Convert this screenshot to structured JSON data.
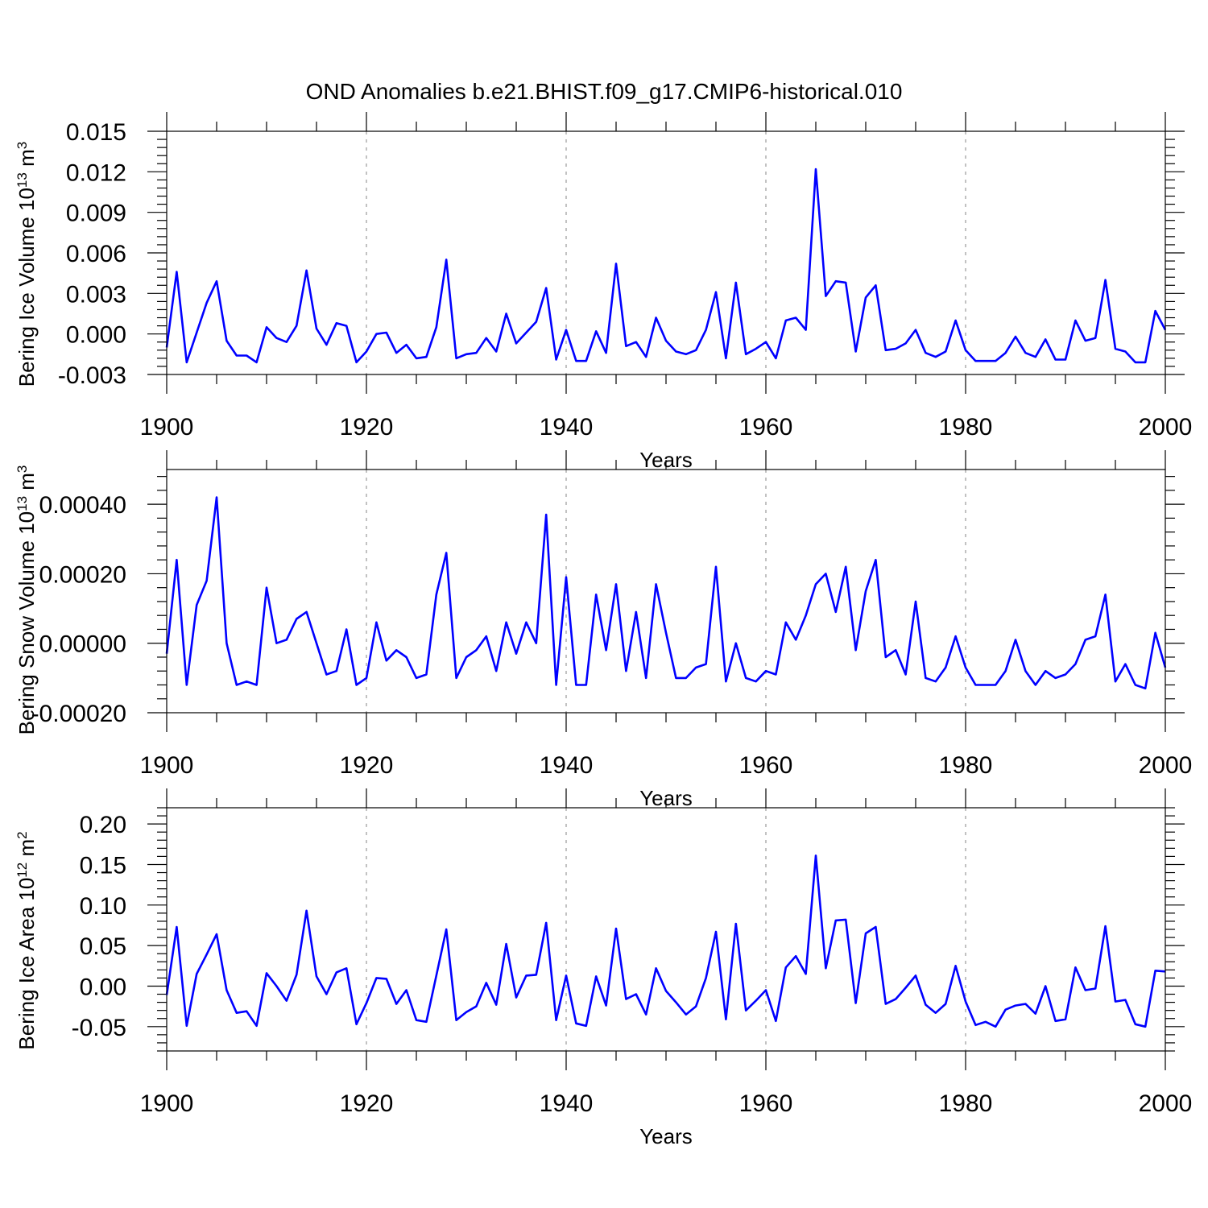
{
  "title": "OND Anomalies b.e21.BHIST.f09_g17.CMIP6-historical.010",
  "colors": {
    "series": "#0000ff",
    "grid": "#999999",
    "frame": "#000000"
  },
  "chart_data": [
    {
      "type": "line",
      "name": "ice-volume",
      "ylabel": "Bering Ice Volume 10",
      "ylabel_exp": "13",
      "ylabel_unit": " m",
      "ylabel_unit_exp": "3",
      "xlabel": "Years",
      "xlim": [
        1900,
        2000
      ],
      "ylim": [
        -0.003,
        0.015
      ],
      "xticks": [
        1900,
        1920,
        1940,
        1960,
        1980,
        2000
      ],
      "xtick_labels": [
        "1900",
        "1920",
        "1940",
        "1960",
        "1980",
        "2000"
      ],
      "yticks": [
        -0.003,
        0.0,
        0.003,
        0.006,
        0.009,
        0.012,
        0.015
      ],
      "ytick_labels": [
        "-0.003",
        "0.000",
        "0.003",
        "0.006",
        "0.009",
        "0.012",
        "0.015"
      ],
      "grid_x": [
        1920,
        1940,
        1960,
        1980
      ],
      "start_year": 1900,
      "values": [
        -0.001,
        0.0046,
        -0.0021,
        0.0001,
        0.0023,
        0.0039,
        -0.0005,
        -0.0016,
        -0.0016,
        -0.0021,
        0.0005,
        -0.0003,
        -0.0006,
        0.0006,
        0.0047,
        0.0004,
        -0.0008,
        0.0008,
        0.0006,
        -0.0021,
        -0.0013,
        0.0,
        0.0001,
        -0.0014,
        -0.0008,
        -0.0018,
        -0.0017,
        0.0005,
        0.0055,
        -0.0018,
        -0.0015,
        -0.0014,
        -0.0003,
        -0.0013,
        0.0015,
        -0.0007,
        0.0001,
        0.0009,
        0.0034,
        -0.0019,
        0.0003,
        -0.002,
        -0.002,
        0.0002,
        -0.0014,
        0.0052,
        -0.0009,
        -0.0006,
        -0.0017,
        0.0012,
        -0.0005,
        -0.0013,
        -0.0015,
        -0.0012,
        0.0003,
        0.0031,
        -0.0018,
        0.0038,
        -0.0015,
        -0.0011,
        -0.0006,
        -0.0018,
        0.001,
        0.0012,
        0.0003,
        0.0122,
        0.0028,
        0.0039,
        0.0038,
        -0.0013,
        0.0027,
        0.0036,
        -0.0012,
        -0.0011,
        -0.0007,
        0.0003,
        -0.0014,
        -0.0017,
        -0.0013,
        0.001,
        -0.0012,
        -0.002,
        -0.002,
        -0.002,
        -0.0014,
        -0.0002,
        -0.0014,
        -0.0017,
        -0.0004,
        -0.0019,
        -0.0019,
        0.001,
        -0.0005,
        -0.0003,
        0.004,
        -0.0011,
        -0.0013,
        -0.0021,
        -0.0021,
        0.0017,
        0.0003
      ]
    },
    {
      "type": "line",
      "name": "snow-volume",
      "ylabel": "Bering Snow Volume 10",
      "ylabel_exp": "13",
      "ylabel_unit": " m",
      "ylabel_unit_exp": "3",
      "xlabel": "Years",
      "xlim": [
        1900,
        2000
      ],
      "ylim": [
        -0.0002,
        0.0005
      ],
      "xticks": [
        1900,
        1920,
        1940,
        1960,
        1980,
        2000
      ],
      "xtick_labels": [
        "1900",
        "1920",
        "1940",
        "1960",
        "1980",
        "2000"
      ],
      "yticks": [
        -0.0002,
        0.0,
        0.0002,
        0.0004
      ],
      "ytick_labels": [
        "-0.00020",
        "0.00000",
        "0.00020",
        "0.00040"
      ],
      "grid_x": [
        1920,
        1940,
        1960,
        1980
      ],
      "start_year": 1900,
      "values": [
        -3e-05,
        0.00024,
        -0.00012,
        0.00011,
        0.00018,
        0.00042,
        0.0,
        -0.00012,
        -0.00011,
        -0.00012,
        0.00016,
        0.0,
        1e-05,
        7e-05,
        9e-05,
        0.0,
        -9e-05,
        -8e-05,
        4e-05,
        -0.00012,
        -0.0001,
        6e-05,
        -5e-05,
        -2e-05,
        -4e-05,
        -0.0001,
        -9e-05,
        0.00014,
        0.00026,
        -0.0001,
        -4e-05,
        -2e-05,
        2e-05,
        -8e-05,
        6e-05,
        -3e-05,
        6e-05,
        0.0,
        0.00037,
        -0.00012,
        0.00019,
        -0.00012,
        -0.00012,
        0.00014,
        -2e-05,
        0.00017,
        -8e-05,
        9e-05,
        -0.0001,
        0.00017,
        3e-05,
        -0.0001,
        -0.0001,
        -7e-05,
        -6e-05,
        0.00022,
        -0.00011,
        0.0,
        -0.0001,
        -0.00011,
        -8e-05,
        -9e-05,
        6e-05,
        1e-05,
        8e-05,
        0.00017,
        0.0002,
        9e-05,
        0.00022,
        -2e-05,
        0.00015,
        0.00024,
        -4e-05,
        -2e-05,
        -9e-05,
        0.00012,
        -0.0001,
        -0.00011,
        -7e-05,
        2e-05,
        -7e-05,
        -0.00012,
        -0.00012,
        -0.00012,
        -8e-05,
        1e-05,
        -8e-05,
        -0.00012,
        -8e-05,
        -0.0001,
        -9e-05,
        -6e-05,
        1e-05,
        2e-05,
        0.00014,
        -0.00011,
        -6e-05,
        -0.00012,
        -0.00013,
        3e-05,
        -7e-05
      ]
    },
    {
      "type": "line",
      "name": "ice-area",
      "ylabel": "Bering Ice Area 10",
      "ylabel_exp": "12",
      "ylabel_unit": " m",
      "ylabel_unit_exp": "2",
      "xlabel": "Years",
      "xlim": [
        1900,
        2000
      ],
      "ylim": [
        -0.08,
        0.22
      ],
      "xticks": [
        1900,
        1920,
        1940,
        1960,
        1980,
        2000
      ],
      "xtick_labels": [
        "1900",
        "1920",
        "1940",
        "1960",
        "1980",
        "2000"
      ],
      "yticks": [
        -0.05,
        0.0,
        0.05,
        0.1,
        0.15,
        0.2
      ],
      "ytick_labels": [
        "-0.05",
        "0.00",
        "0.05",
        "0.10",
        "0.15",
        "0.20"
      ],
      "grid_x": [
        1920,
        1940,
        1960,
        1980
      ],
      "start_year": 1900,
      "values": [
        -0.011,
        0.073,
        -0.049,
        0.015,
        0.039,
        0.064,
        -0.005,
        -0.033,
        -0.031,
        -0.049,
        0.016,
        0.0,
        -0.018,
        0.014,
        0.093,
        0.012,
        -0.01,
        0.017,
        0.022,
        -0.047,
        -0.021,
        0.01,
        0.009,
        -0.022,
        -0.005,
        -0.042,
        -0.044,
        0.013,
        0.07,
        -0.042,
        -0.032,
        -0.025,
        0.004,
        -0.023,
        0.052,
        -0.014,
        0.013,
        0.014,
        0.078,
        -0.042,
        0.013,
        -0.046,
        -0.049,
        0.012,
        -0.024,
        0.071,
        -0.016,
        -0.01,
        -0.035,
        0.022,
        -0.006,
        -0.02,
        -0.035,
        -0.025,
        0.01,
        0.067,
        -0.041,
        0.077,
        -0.03,
        -0.018,
        -0.005,
        -0.043,
        0.023,
        0.037,
        0.015,
        0.161,
        0.022,
        0.081,
        0.082,
        -0.021,
        0.065,
        0.073,
        -0.022,
        -0.016,
        -0.002,
        0.013,
        -0.023,
        -0.033,
        -0.022,
        0.025,
        -0.019,
        -0.048,
        -0.044,
        -0.05,
        -0.029,
        -0.024,
        -0.022,
        -0.034,
        0.0,
        -0.043,
        -0.041,
        0.023,
        -0.005,
        -0.003,
        0.074,
        -0.019,
        -0.017,
        -0.047,
        -0.05,
        0.019,
        0.018
      ]
    }
  ]
}
